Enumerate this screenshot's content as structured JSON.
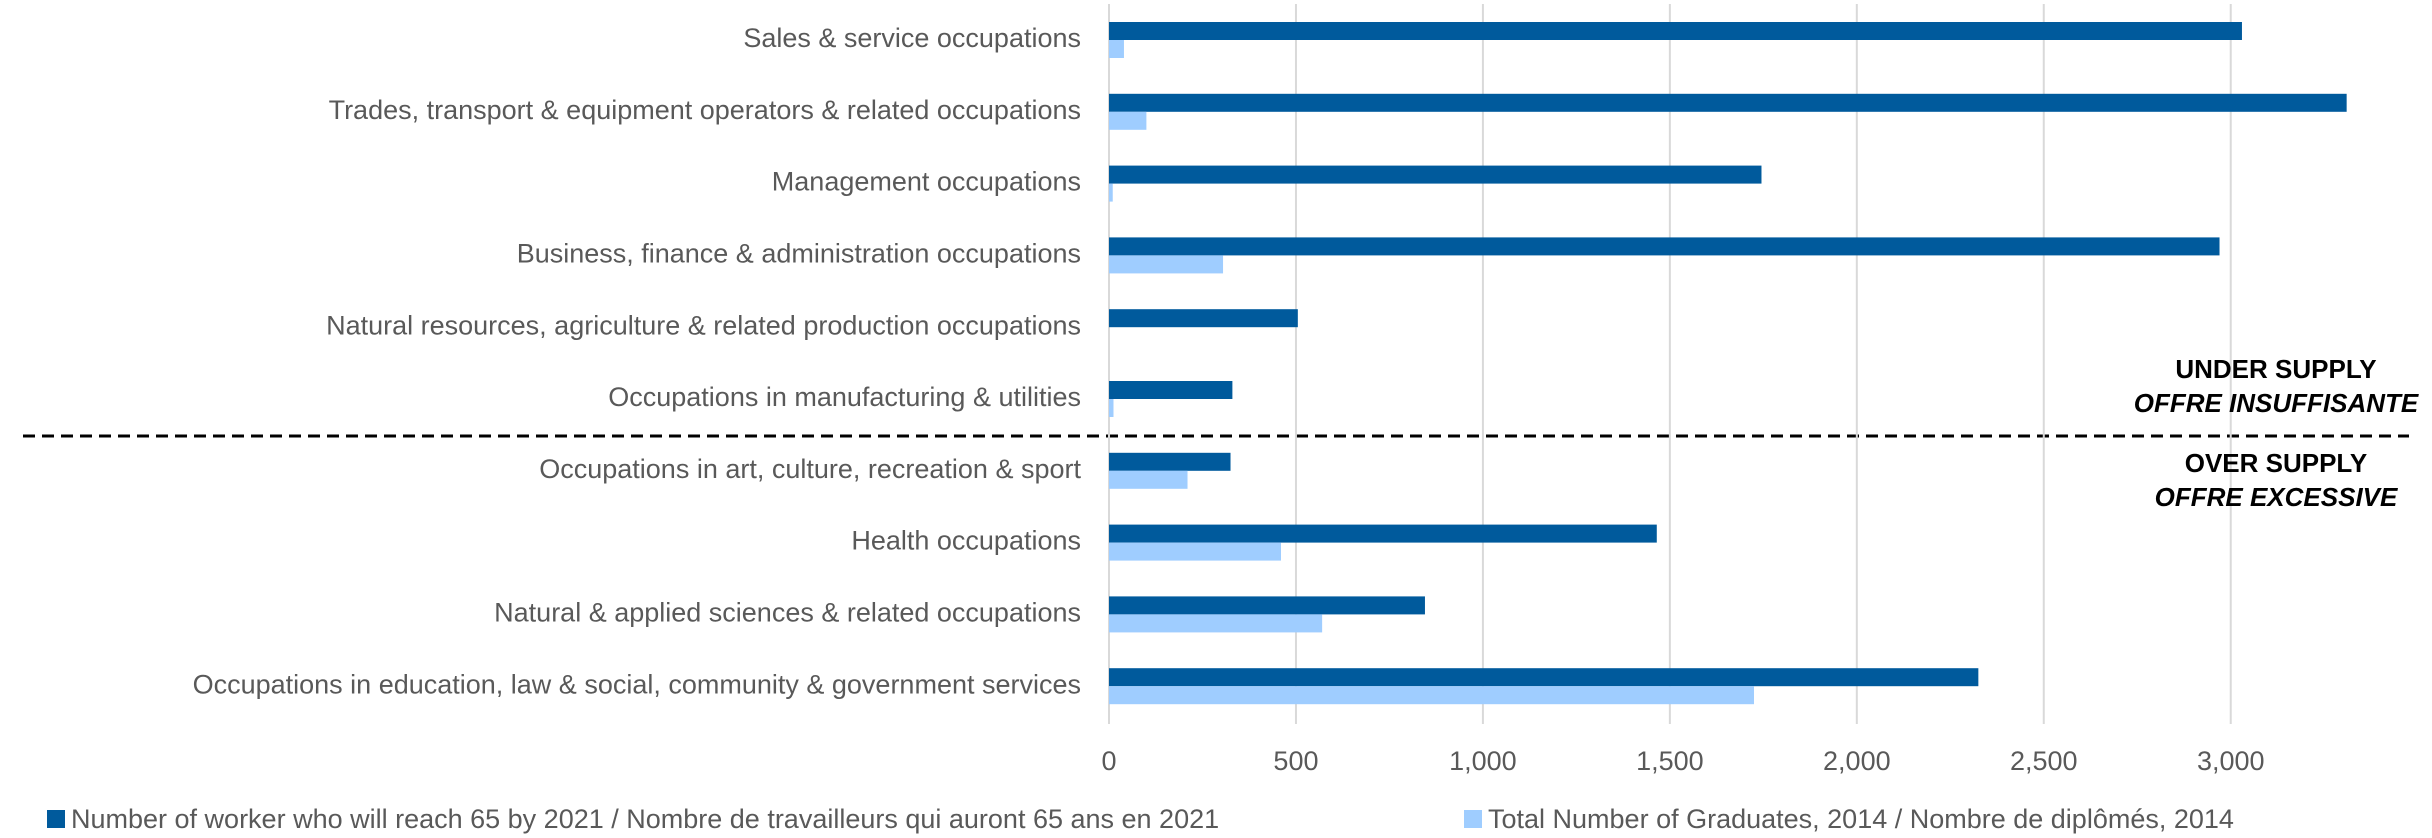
{
  "chart_data": {
    "type": "hbar",
    "categories": [
      "Sales & service occupations",
      "Trades, transport & equipment operators & related occupations",
      "Management occupations",
      "Business, finance & administration occupations",
      "Natural resources, agriculture & related production occupations",
      "Occupations in manufacturing & utilities",
      "Occupations in art, culture, recreation & sport",
      "Health occupations",
      "Natural & applied sciences & related occupations",
      "Occupations in education, law & social, community & government services"
    ],
    "series": [
      {
        "name": "Number of worker who will reach 65 by 2021 / Nombre de travailleurs qui auront 65 ans en 2021",
        "color": "#005a9c",
        "values": [
          3030,
          3310,
          1745,
          2970,
          505,
          330,
          325,
          1465,
          845,
          2325
        ]
      },
      {
        "name": "Total Number of Graduates, 2014 / Nombre de diplômés, 2014",
        "color": "#9fcdff",
        "values": [
          40,
          100,
          10,
          305,
          0,
          12,
          210,
          460,
          570,
          1725
        ]
      }
    ],
    "xlim": [
      0,
      3450
    ],
    "xticks": [
      0,
      500,
      {
        "value": 1000,
        "label": "1,000"
      },
      {
        "value": 1500,
        "label": "1,500"
      },
      {
        "value": 2000,
        "label": "2,000"
      },
      {
        "value": 2500,
        "label": "2,500"
      },
      {
        "value": 3000,
        "label": "3,000"
      }
    ],
    "grid": true,
    "annotations": [
      [
        "UNDER SUPPLY",
        "OFFRE INSUFFISANTE"
      ],
      [
        "OVER SUPPLY",
        "OFFRE EXCESSIVE"
      ]
    ]
  }
}
